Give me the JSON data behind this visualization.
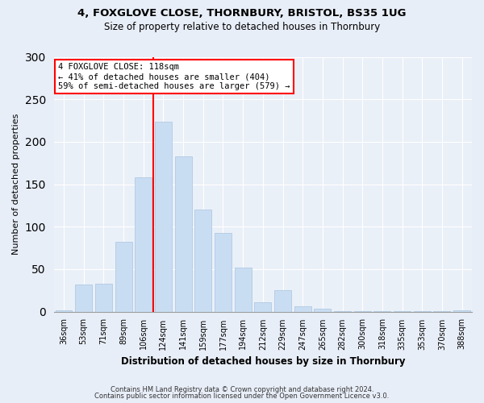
{
  "title1": "4, FOXGLOVE CLOSE, THORNBURY, BRISTOL, BS35 1UG",
  "title2": "Size of property relative to detached houses in Thornbury",
  "xlabel": "Distribution of detached houses by size in Thornbury",
  "ylabel": "Number of detached properties",
  "bin_labels": [
    "36sqm",
    "53sqm",
    "71sqm",
    "89sqm",
    "106sqm",
    "124sqm",
    "141sqm",
    "159sqm",
    "177sqm",
    "194sqm",
    "212sqm",
    "229sqm",
    "247sqm",
    "265sqm",
    "282sqm",
    "300sqm",
    "318sqm",
    "335sqm",
    "353sqm",
    "370sqm",
    "388sqm"
  ],
  "values": [
    2,
    32,
    33,
    82,
    158,
    224,
    183,
    120,
    93,
    52,
    11,
    25,
    6,
    3,
    1,
    1,
    1,
    1,
    1,
    1,
    2
  ],
  "bar_color": "#c9ddf2",
  "bar_edge_color": "#a8c4e0",
  "vline_color": "red",
  "annotation_text": "4 FOXGLOVE CLOSE: 118sqm\n← 41% of detached houses are smaller (404)\n59% of semi-detached houses are larger (579) →",
  "annotation_box_color": "white",
  "annotation_box_edgecolor": "red",
  "ylim": [
    0,
    300
  ],
  "yticks": [
    0,
    50,
    100,
    150,
    200,
    250,
    300
  ],
  "footer1": "Contains HM Land Registry data © Crown copyright and database right 2024.",
  "footer2": "Contains public sector information licensed under the Open Government Licence v3.0.",
  "background_color": "#e8eef8",
  "plot_bg_color": "#eaf0f8",
  "vline_bin_index": 5
}
